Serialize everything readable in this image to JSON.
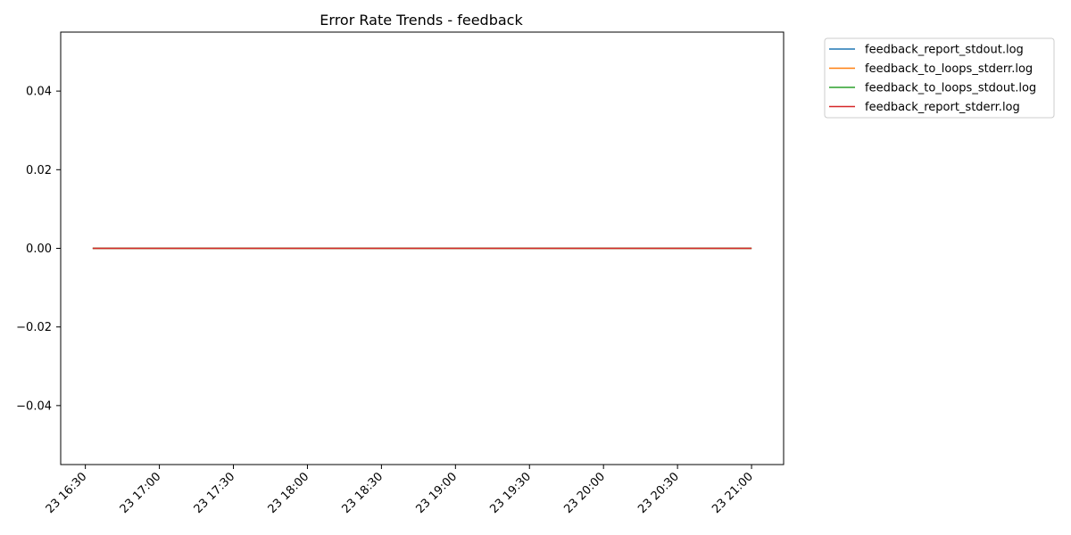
{
  "chart_data": {
    "type": "line",
    "title": "Error Rate Trends - feedback",
    "xlabel": "",
    "ylabel": "",
    "x_tick_labels": [
      "23 16:30",
      "23 17:00",
      "23 17:30",
      "23 18:00",
      "23 18:30",
      "23 19:00",
      "23 19:30",
      "23 20:00",
      "23 20:30",
      "23 21:00"
    ],
    "y_tick_labels": [
      "0.04",
      "0.02",
      "0.00",
      "−0.02",
      "−0.04"
    ],
    "x_range": [
      "2024-01-23 16:20",
      "2024-01-23 21:13"
    ],
    "ylim": [
      -0.055,
      0.055
    ],
    "y_ticks": [
      0.04,
      0.02,
      0.0,
      -0.02,
      -0.04
    ],
    "grid": false,
    "legend_position": "outside-top-right",
    "series": [
      {
        "name": "feedback_report_stdout.log",
        "color": "#1f77b4",
        "x": [
          "2024-01-23 16:33",
          "2024-01-23 21:00"
        ],
        "y": [
          0,
          0
        ]
      },
      {
        "name": "feedback_to_loops_stderr.log",
        "color": "#ff7f0e",
        "x": [
          "2024-01-23 16:33",
          "2024-01-23 21:00"
        ],
        "y": [
          0,
          0
        ]
      },
      {
        "name": "feedback_to_loops_stdout.log",
        "color": "#2ca02c",
        "x": [
          "2024-01-23 16:33",
          "2024-01-23 21:00"
        ],
        "y": [
          0,
          0
        ]
      },
      {
        "name": "feedback_report_stderr.log",
        "color": "#d62728",
        "x": [
          "2024-01-23 16:33",
          "2024-01-23 21:00"
        ],
        "y": [
          0,
          0
        ]
      }
    ]
  }
}
